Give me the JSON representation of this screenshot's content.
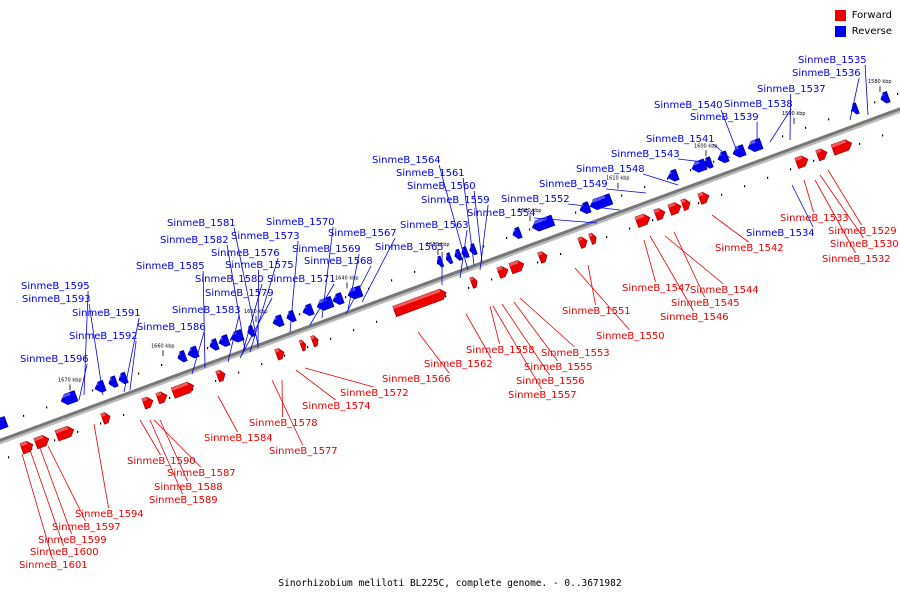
{
  "caption": "Sinorhizobium meliloti BL225C, complete genome. - 0..3671982",
  "legend": {
    "forward": {
      "label": "Forward",
      "color": "#ee0000"
    },
    "reverse": {
      "label": "Reverse",
      "color": "#0000ee"
    }
  },
  "scale_labels": [
    "1580 kbp",
    "1590 kbp",
    "1600 kbp",
    "1610 kbp",
    "1620 kbp",
    "1630 kbp",
    "1640 kbp",
    "1650 kbp",
    "1660 kbp",
    "1670 kbp"
  ],
  "reverse_genes": [
    "SinmeB_1535",
    "SinmeB_1536",
    "SinmeB_1537",
    "SinmeB_1538",
    "SinmeB_1539",
    "SinmeB_1540",
    "SinmeB_1541",
    "SinmeB_1543",
    "SinmeB_1548",
    "SinmeB_1549",
    "SinmeB_1552",
    "SinmeB_1554",
    "SinmeB_1534",
    "SinmeB_1564",
    "SinmeB_1561",
    "SinmeB_1560",
    "SinmeB_1559",
    "SinmeB_1563",
    "SinmeB_1565",
    "SinmeB_1567",
    "SinmeB_1570",
    "SinmeB_1569",
    "SinmeB_1568",
    "SinmeB_1571",
    "SinmeB_1581",
    "SinmeB_1573",
    "SinmeB_1582",
    "SinmeB_1576",
    "SinmeB_1575",
    "SinmeB_1580",
    "SinmeB_1585",
    "SinmeB_1579",
    "SinmeB_1583",
    "SinmeB_1586",
    "SinmeB_1595",
    "SinmeB_1593",
    "SinmeB_1591",
    "SinmeB_1592",
    "SinmeB_1596"
  ],
  "forward_genes": [
    "SinmeB_1533",
    "SinmeB_1529",
    "SinmeB_1530",
    "SinmeB_1532",
    "SinmeB_1542",
    "SinmeB_1544",
    "SinmeB_1547",
    "SinmeB_1545",
    "SinmeB_1546",
    "SinmeB_1551",
    "SinmeB_1550",
    "SinmeB_1553",
    "SinmeB_1558",
    "SinmeB_1555",
    "SinmeB_1556",
    "SinmeB_1557",
    "SinmeB_1562",
    "SinmeB_1566",
    "SinmeB_1572",
    "SinmeB_1574",
    "SinmeB_1578",
    "SinmeB_1577",
    "SinmeB_1584",
    "SinmeB_1590",
    "SinmeB_1587",
    "SinmeB_1588",
    "SinmeB_1589",
    "SinmeB_1594",
    "SinmeB_1597",
    "SinmeB_1599",
    "SinmeB_1600",
    "SinmeB_1601"
  ]
}
